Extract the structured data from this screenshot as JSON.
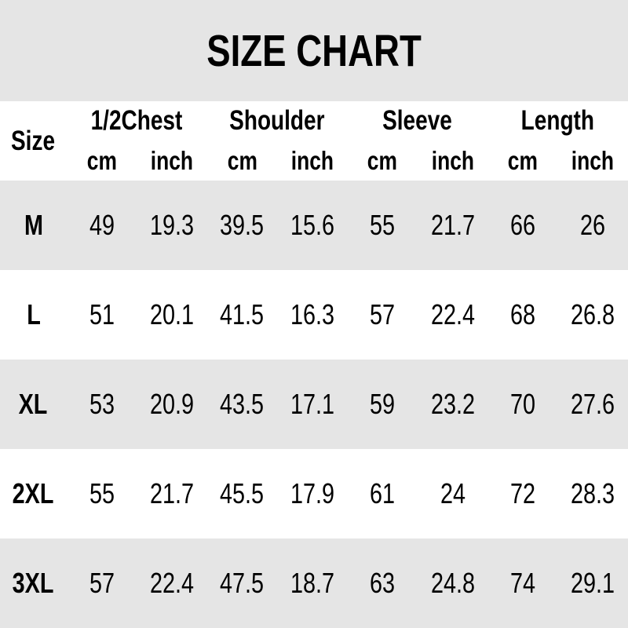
{
  "title": "SIZE CHART",
  "header": {
    "size_label": "Size",
    "unit_cm": "cm",
    "unit_inch": "inch",
    "groups": [
      {
        "id": "half-chest",
        "label": "1/2Chest"
      },
      {
        "id": "shoulder",
        "label": "Shoulder"
      },
      {
        "id": "sleeve",
        "label": "Sleeve"
      },
      {
        "id": "length",
        "label": "Length"
      }
    ]
  },
  "chart_data": {
    "type": "table",
    "title": "SIZE CHART",
    "columns": [
      "Size",
      "1/2Chest cm",
      "1/2Chest inch",
      "Shoulder cm",
      "Shoulder inch",
      "Sleeve cm",
      "Sleeve inch",
      "Length cm",
      "Length inch"
    ],
    "rows": [
      [
        "M",
        "49",
        "19.3",
        "39.5",
        "15.6",
        "55",
        "21.7",
        "66",
        "26"
      ],
      [
        "L",
        "51",
        "20.1",
        "41.5",
        "16.3",
        "57",
        "22.4",
        "68",
        "26.8"
      ],
      [
        "XL",
        "53",
        "20.9",
        "43.5",
        "17.1",
        "59",
        "23.2",
        "70",
        "27.6"
      ],
      [
        "2XL",
        "55",
        "21.7",
        "45.5",
        "17.9",
        "61",
        "24",
        "72",
        "28.3"
      ],
      [
        "3XL",
        "57",
        "22.4",
        "47.5",
        "18.7",
        "63",
        "24.8",
        "74",
        "29.1"
      ]
    ]
  },
  "colors": {
    "band_gray": "#e5e5e5",
    "band_white": "#ffffff",
    "text": "#000000"
  }
}
